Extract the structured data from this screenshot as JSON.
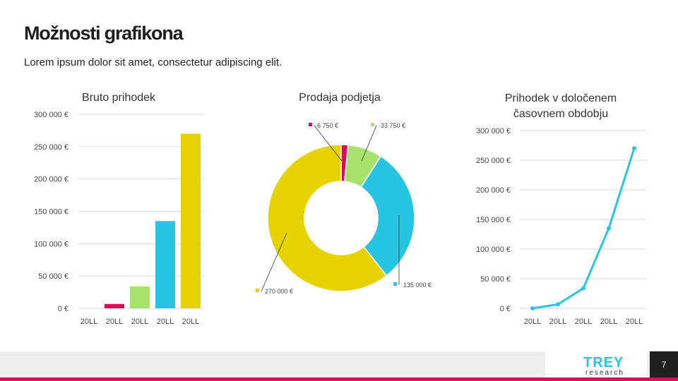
{
  "page": {
    "title": "Možnosti grafikona",
    "subtitle": "Lorem ipsum dolor sit amet, consectetur adipiscing elit.",
    "page_number": "7",
    "logo": {
      "main": "TREY",
      "sub": "research"
    }
  },
  "colors": {
    "magenta": "#d6115a",
    "green": "#a8e26c",
    "cyan": "#27c5e2",
    "yellow": "#e6d200",
    "grid": "#d9d9d9",
    "footer_bg": "#efefef",
    "page_num_bg": "#1f1f1f"
  },
  "chart_data": [
    {
      "type": "bar",
      "title": "Bruto prihodek",
      "categories": [
        "20LL",
        "20LL",
        "20LL",
        "20LL",
        "20LL"
      ],
      "values": [
        0,
        6750,
        33750,
        135000,
        270000
      ],
      "bar_colors": [
        "magenta",
        "magenta",
        "green",
        "cyan",
        "yellow"
      ],
      "yticks": [
        "0 €",
        "50 000 €",
        "100 000 €",
        "150 000 €",
        "200 000 €",
        "250 000 €",
        "300 000 €"
      ],
      "ylim": [
        0,
        300000
      ],
      "grid": true
    },
    {
      "type": "pie",
      "title": "Prodaja podjetja",
      "donut": true,
      "slices": [
        {
          "value": 6750,
          "label": "6 750 €",
          "color": "magenta"
        },
        {
          "value": 33750,
          "label": "33 750 €",
          "color": "green"
        },
        {
          "value": 135000,
          "label": "135 000 €",
          "color": "cyan"
        },
        {
          "value": 270000,
          "label": "270 000 €",
          "color": "yellow"
        }
      ]
    },
    {
      "type": "line",
      "title_lines": [
        "Prihodek v določenem",
        "časovnem obdobju"
      ],
      "categories": [
        "20LL",
        "20LL",
        "20LL",
        "20LL",
        "20LL"
      ],
      "values": [
        0,
        6750,
        33750,
        135000,
        270000
      ],
      "color": "cyan",
      "yticks": [
        "0 €",
        "50 000 €",
        "100 000 €",
        "150 000 €",
        "200 000 €",
        "250 000 €",
        "300 000 €"
      ],
      "ylim": [
        0,
        300000
      ],
      "grid": true
    }
  ]
}
